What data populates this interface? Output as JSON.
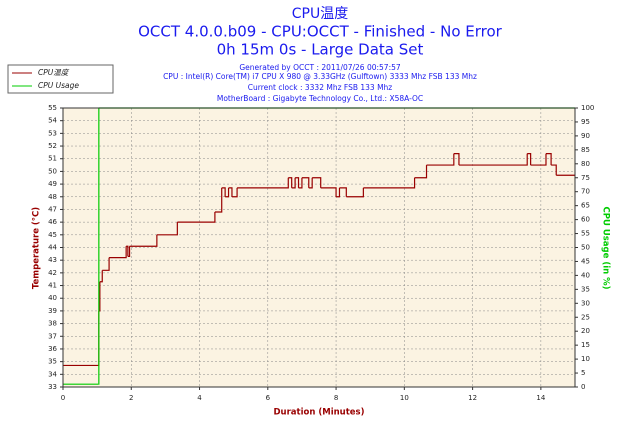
{
  "chart_data": {
    "type": "line",
    "title": "CPU温度",
    "subtitle": [
      "OCCT 4.0.0.b09 - CPU:OCCT - Finished - No Error",
      "0h 15m 0s - Large Data Set"
    ],
    "info": [
      "Generated by OCCT : 2011/07/26 00:57:57",
      "CPU : Intel(R) Core(TM) i7 CPU X 980 @ 3.33GHz (Gulftown) 3333 Mhz FSB 133 Mhz",
      "Current clock : 3332 Mhz FSB 133 Mhz",
      "MotherBoard : Gigabyte Technology Co., Ltd.: X58A-OC"
    ],
    "xlabel": "Duration (Minutes)",
    "ylabel": "Temperature (°C)",
    "y2label": "CPU Usage (in %)",
    "step": "post",
    "grid": true,
    "legend": "upper left",
    "xlim": [
      0,
      15
    ],
    "xticks": [
      0,
      2,
      4,
      6,
      8,
      10,
      12,
      14
    ],
    "ylim": [
      33,
      55
    ],
    "yticks": [
      33,
      34,
      35,
      36,
      37,
      38,
      39,
      40,
      41,
      42,
      43,
      44,
      45,
      46,
      47,
      48,
      49,
      50,
      51,
      52,
      53,
      54,
      55
    ],
    "y2lim": [
      0,
      100
    ],
    "y2ticks": [
      0,
      5,
      10,
      15,
      20,
      25,
      30,
      35,
      40,
      45,
      50,
      55,
      60,
      65,
      70,
      75,
      80,
      85,
      90,
      95,
      100
    ],
    "series": [
      {
        "name": "CPU温度",
        "color": "#990000",
        "x": [
          0,
          1.05,
          1.08,
          1.15,
          1.35,
          1.85,
          1.9,
          1.95,
          2.75,
          3.35,
          4.45,
          4.65,
          4.75,
          4.85,
          4.95,
          5.1,
          6.6,
          6.7,
          6.8,
          6.9,
          7.0,
          7.2,
          7.3,
          7.55,
          8.0,
          8.1,
          8.3,
          8.8,
          10.3,
          10.65,
          11.45,
          11.6,
          13.6,
          13.7,
          14.15,
          14.3,
          14.45,
          15
        ],
        "values": [
          34.7,
          39,
          41.3,
          42.2,
          43.2,
          44.1,
          43.3,
          44.1,
          45.0,
          46.0,
          46.8,
          48.7,
          48.0,
          48.7,
          48.0,
          48.7,
          49.5,
          48.7,
          49.5,
          48.7,
          49.5,
          48.7,
          49.5,
          48.7,
          48.0,
          48.7,
          48.0,
          48.7,
          49.5,
          50.5,
          51.4,
          50.5,
          51.4,
          50.5,
          51.4,
          50.5,
          49.7,
          49.7
        ]
      },
      {
        "name": "CPU Usage",
        "color": "#00cc00",
        "axis": "y2",
        "x": [
          0,
          1.03,
          1.05,
          15
        ],
        "values": [
          1,
          1,
          100,
          100
        ]
      }
    ]
  }
}
